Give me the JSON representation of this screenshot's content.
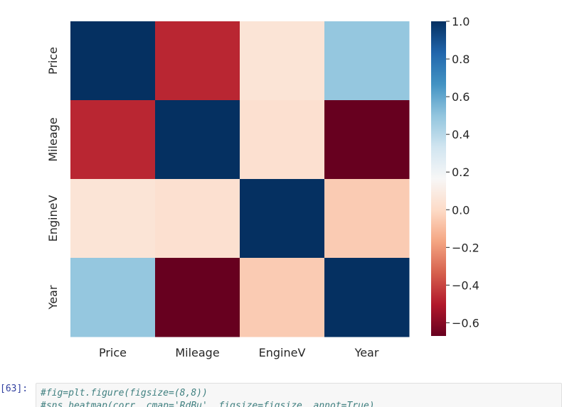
{
  "chart_data": {
    "type": "heatmap",
    "title": "",
    "xlabel": "",
    "ylabel": "",
    "x_categories": [
      "Price",
      "Mileage",
      "EngineV",
      "Year"
    ],
    "y_categories": [
      "Price",
      "Mileage",
      "EngineV",
      "Year"
    ],
    "values": [
      [
        1.0,
        -0.47,
        0.05,
        0.49
      ],
      [
        -0.47,
        1.0,
        0.03,
        -0.67
      ],
      [
        0.05,
        0.03,
        1.0,
        -0.05
      ],
      [
        0.49,
        -0.67,
        -0.05,
        1.0
      ]
    ],
    "colormap": "RdBu",
    "colorbar": {
      "vmin": -0.67,
      "vmax": 1.0,
      "ticks": [
        1.0,
        0.8,
        0.6,
        0.4,
        0.2,
        0.0,
        -0.2,
        -0.4,
        -0.6
      ],
      "tick_labels": [
        "1.0",
        "0.8",
        "0.6",
        "0.4",
        "0.2",
        "0.0",
        "−0.2",
        "−0.4",
        "−0.6"
      ]
    },
    "grid": false
  },
  "cell": {
    "prompt": "[63]:",
    "code_lines": [
      "#fig=plt.figure(figsize=(8,8))",
      "#sns.heatmap(corr, cmap='RdBu', figsize=figsize, annot=True)"
    ]
  }
}
